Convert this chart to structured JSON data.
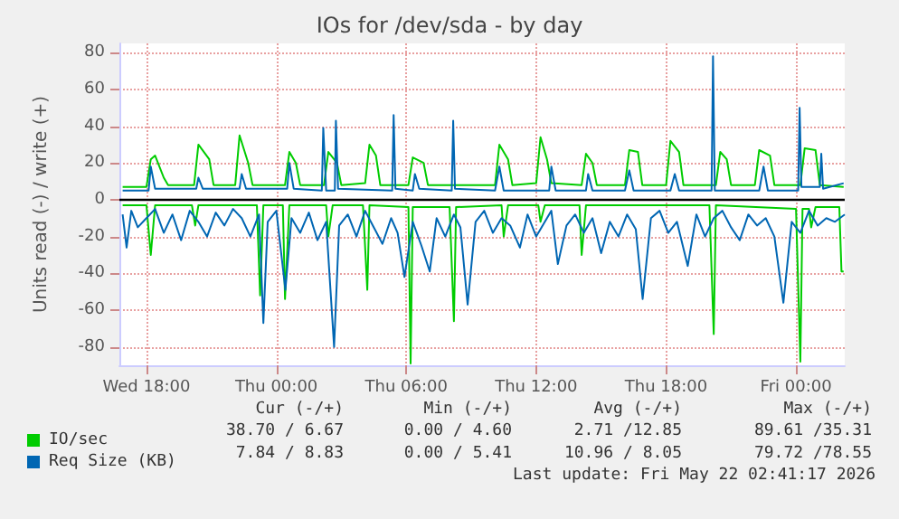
{
  "chart_data": {
    "type": "line",
    "title": "IOs for /dev/sda - by day",
    "ylabel": "Units read (-) / write (+)",
    "xlim": [
      "2026-05-20T16:45",
      "2026-05-22T02:15"
    ],
    "xticks": [
      {
        "value": "2026-05-20T18:00",
        "label": "Wed 18:00"
      },
      {
        "value": "2026-05-21T00:00",
        "label": "Thu 00:00"
      },
      {
        "value": "2026-05-21T06:00",
        "label": "Thu 06:00"
      },
      {
        "value": "2026-05-21T12:00",
        "label": "Thu 12:00"
      },
      {
        "value": "2026-05-21T18:00",
        "label": "Thu 18:00"
      },
      {
        "value": "2026-05-22T00:00",
        "label": "Fri 00:00"
      }
    ],
    "ylim": [
      -90,
      85
    ],
    "yticks": [
      -80,
      -60,
      -40,
      -20,
      0,
      20,
      40,
      60,
      80
    ],
    "grid": true,
    "legend": "bottom left",
    "marker": "none",
    "line_style": "solid",
    "ref_lines": [
      {
        "axis": "y",
        "value": 0,
        "color": "#000000"
      }
    ],
    "annotations": [
      "Cur (-/+)",
      "Min (-/+)",
      "Avg (-/+)",
      "Max (-/+)",
      "38.70 / 6.67",
      "0.00 / 4.60",
      "2.71 /12.85",
      "89.61 /35.31",
      "7.84 / 8.83",
      "0.00 / 5.41",
      "10.96 / 8.05",
      "79.72 /78.55",
      "Last update: Fri May 22 02:41:17 2026"
    ],
    "series": [
      {
        "name": "IO/sec",
        "color": "#00cc00",
        "x": [
          "2026-05-20T16:54",
          "2026-05-20T18:00",
          "2026-05-20T18:12",
          "2026-05-20T18:24",
          "2026-05-20T18:48",
          "2026-05-20T19:00",
          "2026-05-20T20:12",
          "2026-05-20T20:24",
          "2026-05-20T20:54",
          "2026-05-20T21:06",
          "2026-05-20T22:06",
          "2026-05-20T22:18",
          "2026-05-20T22:42",
          "2026-05-20T22:54",
          "2026-05-21T00:24",
          "2026-05-21T00:36",
          "2026-05-21T00:54",
          "2026-05-21T01:06",
          "2026-05-21T02:12",
          "2026-05-21T02:24",
          "2026-05-21T02:48",
          "2026-05-21T03:00",
          "2026-05-21T04:06",
          "2026-05-21T04:18",
          "2026-05-21T04:36",
          "2026-05-21T04:48",
          "2026-05-21T06:06",
          "2026-05-21T06:18",
          "2026-05-21T06:48",
          "2026-05-21T07:00",
          "2026-05-21T10:06",
          "2026-05-21T10:18",
          "2026-05-21T10:42",
          "2026-05-21T10:54",
          "2026-05-21T12:00",
          "2026-05-21T12:12",
          "2026-05-21T12:30",
          "2026-05-21T12:42",
          "2026-05-21T14:06",
          "2026-05-21T14:18",
          "2026-05-21T14:36",
          "2026-05-21T14:48",
          "2026-05-21T16:06",
          "2026-05-21T16:18",
          "2026-05-21T16:42",
          "2026-05-21T16:54",
          "2026-05-21T18:00",
          "2026-05-21T18:12",
          "2026-05-21T18:36",
          "2026-05-21T18:48",
          "2026-05-21T20:18",
          "2026-05-21T20:30",
          "2026-05-21T20:48",
          "2026-05-21T21:00",
          "2026-05-21T22:06",
          "2026-05-21T22:18",
          "2026-05-21T22:48",
          "2026-05-21T23:00",
          "2026-05-22T00:12",
          "2026-05-22T00:24",
          "2026-05-22T00:54",
          "2026-05-22T01:06",
          "2026-05-22T02:12"
        ],
        "values": [
          7,
          7,
          22,
          24,
          12,
          8,
          8,
          30,
          22,
          8,
          8,
          35,
          20,
          8,
          8,
          26,
          20,
          8,
          8,
          26,
          20,
          8,
          9,
          30,
          24,
          8,
          8,
          23,
          20,
          8,
          8,
          30,
          22,
          8,
          9,
          34,
          22,
          9,
          8,
          25,
          20,
          8,
          8,
          27,
          26,
          8,
          8,
          32,
          26,
          8,
          8,
          26,
          22,
          8,
          8,
          27,
          24,
          8,
          8,
          28,
          27,
          8,
          7
        ]
      },
      {
        "color": "#00cc00",
        "x": [
          "2026-05-20T16:54",
          "2026-05-20T18:00",
          "2026-05-20T18:12",
          "2026-05-20T18:24",
          "2026-05-20T20:06",
          "2026-05-20T20:15",
          "2026-05-20T20:24",
          "2026-05-20T23:06",
          "2026-05-20T23:15",
          "2026-05-20T23:24",
          "2026-05-21T00:18",
          "2026-05-21T00:24",
          "2026-05-21T00:36",
          "2026-05-21T02:18",
          "2026-05-21T02:24",
          "2026-05-21T02:36",
          "2026-05-21T04:00",
          "2026-05-21T04:12",
          "2026-05-21T04:18",
          "2026-05-21T06:06",
          "2026-05-21T06:12",
          "2026-05-21T06:18",
          "2026-05-21T08:00",
          "2026-05-21T08:12",
          "2026-05-21T08:18",
          "2026-05-21T10:24",
          "2026-05-21T10:30",
          "2026-05-21T10:42",
          "2026-05-21T12:06",
          "2026-05-21T12:12",
          "2026-05-21T12:24",
          "2026-05-21T14:00",
          "2026-05-21T14:06",
          "2026-05-21T14:18",
          "2026-05-21T20:00",
          "2026-05-21T20:12",
          "2026-05-21T20:18",
          "2026-05-22T00:00",
          "2026-05-22T00:12",
          "2026-05-22T00:18",
          "2026-05-22T00:36",
          "2026-05-22T00:42",
          "2026-05-22T00:54",
          "2026-05-22T02:00",
          "2026-05-22T02:06",
          "2026-05-22T02:12"
        ],
        "values": [
          -3,
          -3,
          -30,
          -3,
          -3,
          -14,
          -3,
          -3,
          -52,
          -3,
          -3,
          -54,
          -3,
          -3,
          -20,
          -3,
          -3,
          -49,
          -3,
          -4,
          -89,
          -4,
          -4,
          -66,
          -4,
          -3,
          -20,
          -3,
          -3,
          -12,
          -3,
          -3,
          -30,
          -3,
          -3,
          -73,
          -3,
          -5,
          -88,
          -5,
          -5,
          -15,
          -4,
          -4,
          -39,
          -39
        ]
      },
      {
        "name": "Req Size (KB)",
        "color": "#0066b3",
        "x": [
          "2026-05-20T16:54",
          "2026-05-20T18:06",
          "2026-05-20T18:12",
          "2026-05-20T18:24",
          "2026-05-20T20:18",
          "2026-05-20T20:24",
          "2026-05-20T20:36",
          "2026-05-20T22:18",
          "2026-05-20T22:24",
          "2026-05-20T22:36",
          "2026-05-21T00:30",
          "2026-05-21T00:36",
          "2026-05-21T00:48",
          "2026-05-21T02:06",
          "2026-05-21T02:10",
          "2026-05-21T02:18",
          "2026-05-21T02:42",
          "2026-05-21T02:45",
          "2026-05-21T02:51",
          "2026-05-21T05:21",
          "2026-05-21T05:25",
          "2026-05-21T05:30",
          "2026-05-21T06:18",
          "2026-05-21T06:24",
          "2026-05-21T06:36",
          "2026-05-21T08:06",
          "2026-05-21T08:10",
          "2026-05-21T08:15",
          "2026-05-21T10:06",
          "2026-05-21T10:18",
          "2026-05-21T10:30",
          "2026-05-21T12:36",
          "2026-05-21T12:42",
          "2026-05-21T12:54",
          "2026-05-21T14:18",
          "2026-05-21T14:24",
          "2026-05-21T14:36",
          "2026-05-21T16:06",
          "2026-05-21T16:18",
          "2026-05-21T16:30",
          "2026-05-21T18:12",
          "2026-05-21T18:24",
          "2026-05-21T18:36",
          "2026-05-21T20:06",
          "2026-05-21T20:10",
          "2026-05-21T20:15",
          "2026-05-21T22:18",
          "2026-05-21T22:30",
          "2026-05-21T22:42",
          "2026-05-22T00:06",
          "2026-05-22T00:10",
          "2026-05-22T00:15",
          "2026-05-22T01:06",
          "2026-05-22T01:10",
          "2026-05-22T01:15",
          "2026-05-22T02:12"
        ],
        "values": [
          5,
          5,
          18,
          6,
          6,
          12,
          6,
          6,
          14,
          6,
          6,
          20,
          6,
          5,
          39,
          5,
          5,
          43,
          6,
          5,
          46,
          6,
          5,
          14,
          6,
          5,
          43,
          6,
          5,
          18,
          5,
          5,
          18,
          5,
          5,
          14,
          5,
          5,
          16,
          5,
          5,
          14,
          5,
          5,
          78,
          5,
          5,
          18,
          5,
          5,
          50,
          7,
          7,
          25,
          6,
          9
        ]
      },
      {
        "color": "#0066b3",
        "x": [
          "2026-05-20T16:54",
          "2026-05-20T17:05",
          "2026-05-20T17:18",
          "2026-05-20T17:36",
          "2026-05-20T18:00",
          "2026-05-20T18:24",
          "2026-05-20T18:48",
          "2026-05-20T19:12",
          "2026-05-20T19:36",
          "2026-05-20T20:00",
          "2026-05-20T20:24",
          "2026-05-20T20:48",
          "2026-05-20T21:12",
          "2026-05-20T21:36",
          "2026-05-20T22:00",
          "2026-05-20T22:24",
          "2026-05-20T22:48",
          "2026-05-20T23:12",
          "2026-05-20T23:24",
          "2026-05-20T23:36",
          "2026-05-21T00:00",
          "2026-05-21T00:25",
          "2026-05-21T00:42",
          "2026-05-21T01:06",
          "2026-05-21T01:30",
          "2026-05-21T01:54",
          "2026-05-21T02:18",
          "2026-05-21T02:40",
          "2026-05-21T02:54",
          "2026-05-21T03:18",
          "2026-05-21T03:42",
          "2026-05-21T04:06",
          "2026-05-21T04:30",
          "2026-05-21T04:54",
          "2026-05-21T05:18",
          "2026-05-21T05:36",
          "2026-05-21T05:55",
          "2026-05-21T06:18",
          "2026-05-21T06:42",
          "2026-05-21T07:05",
          "2026-05-21T07:24",
          "2026-05-21T07:48",
          "2026-05-21T08:12",
          "2026-05-21T08:30",
          "2026-05-21T08:50",
          "2026-05-21T09:12",
          "2026-05-21T09:36",
          "2026-05-21T10:00",
          "2026-05-21T10:24",
          "2026-05-21T10:48",
          "2026-05-21T11:15",
          "2026-05-21T11:36",
          "2026-05-21T12:00",
          "2026-05-21T12:24",
          "2026-05-21T12:42",
          "2026-05-21T13:00",
          "2026-05-21T13:24",
          "2026-05-21T13:48",
          "2026-05-21T14:12",
          "2026-05-21T14:36",
          "2026-05-21T15:00",
          "2026-05-21T15:24",
          "2026-05-21T15:48",
          "2026-05-21T16:12",
          "2026-05-21T16:36",
          "2026-05-21T16:55",
          "2026-05-21T17:18",
          "2026-05-21T17:42",
          "2026-05-21T18:06",
          "2026-05-21T18:30",
          "2026-05-21T19:00",
          "2026-05-21T19:24",
          "2026-05-21T19:48",
          "2026-05-21T20:12",
          "2026-05-21T20:36",
          "2026-05-21T21:00",
          "2026-05-21T21:24",
          "2026-05-21T21:48",
          "2026-05-21T22:12",
          "2026-05-21T22:36",
          "2026-05-21T23:00",
          "2026-05-21T23:25",
          "2026-05-21T23:48",
          "2026-05-22T00:12",
          "2026-05-22T00:36",
          "2026-05-22T01:00",
          "2026-05-22T01:24",
          "2026-05-22T01:48",
          "2026-05-22T02:15"
        ],
        "values": [
          -8,
          -26,
          -6,
          -15,
          -10,
          -5,
          -18,
          -8,
          -22,
          -6,
          -12,
          -20,
          -7,
          -14,
          -5,
          -10,
          -20,
          -8,
          -67,
          -12,
          -6,
          -49,
          -10,
          -18,
          -7,
          -22,
          -12,
          -80,
          -14,
          -8,
          -20,
          -6,
          -15,
          -24,
          -10,
          -18,
          -42,
          -12,
          -25,
          -39,
          -10,
          -20,
          -8,
          -15,
          -57,
          -12,
          -6,
          -18,
          -10,
          -14,
          -26,
          -8,
          -20,
          -12,
          -6,
          -35,
          -14,
          -8,
          -18,
          -10,
          -29,
          -12,
          -20,
          -8,
          -16,
          -54,
          -10,
          -6,
          -18,
          -12,
          -36,
          -8,
          -20,
          -10,
          -6,
          -15,
          -22,
          -8,
          -14,
          -10,
          -20,
          -56,
          -12,
          -18,
          -6,
          -14,
          -10,
          -12,
          -8
        ]
      }
    ]
  }
}
